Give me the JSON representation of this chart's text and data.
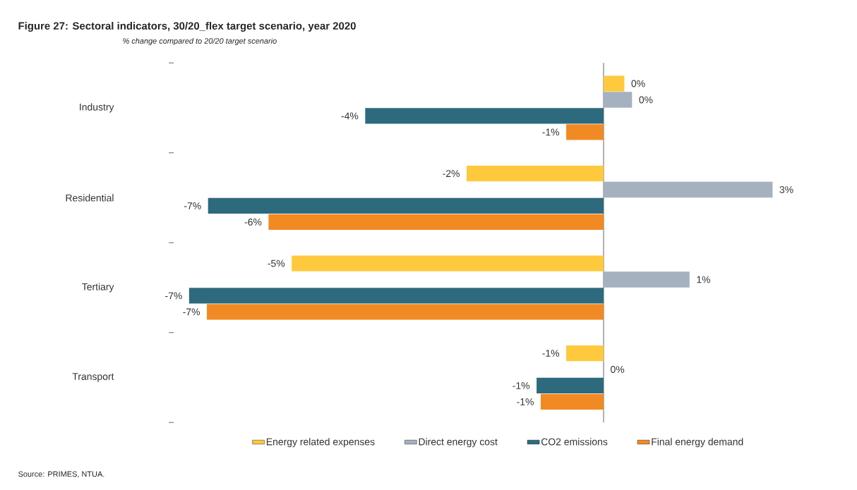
{
  "chart_data": {
    "type": "bar",
    "orientation": "horizontal",
    "title": "Figure 27: Sectoral indicators, 30/20_flex target scenario, year 2020",
    "subtitle": "% change compared to 20/20 target scenario",
    "categories": [
      "Industry",
      "Residential",
      "Tertiary",
      "Transport"
    ],
    "series": [
      {
        "name": "Energy related expenses",
        "color": "#fec93c",
        "values": [
          0.35,
          -2.31,
          -5.26,
          -0.63
        ],
        "value_labels": [
          "0%",
          "-2%",
          "-5%",
          "-1%"
        ]
      },
      {
        "name": "Direct energy cost",
        "color": "#a6b1c0",
        "values": [
          0.48,
          2.85,
          1.45,
          0
        ],
        "value_labels": [
          "0%",
          "3%",
          "1%",
          "0%"
        ]
      },
      {
        "name": "CO2 emissions",
        "color": "#2e6a7d",
        "values": [
          -4.02,
          -6.67,
          -6.99,
          -1.13
        ],
        "value_labels": [
          "-4%",
          "-7%",
          "-7%",
          "-1%"
        ]
      },
      {
        "name": "Final energy demand",
        "color": "#f28a23",
        "values": [
          -0.63,
          -5.65,
          -6.69,
          -1.06
        ],
        "value_labels": [
          "-1%",
          "-6%",
          "-7%",
          "-1%"
        ]
      }
    ],
    "legend": "bottom",
    "annotations": [
      "Source:    PRIMES, NTUA."
    ]
  }
}
